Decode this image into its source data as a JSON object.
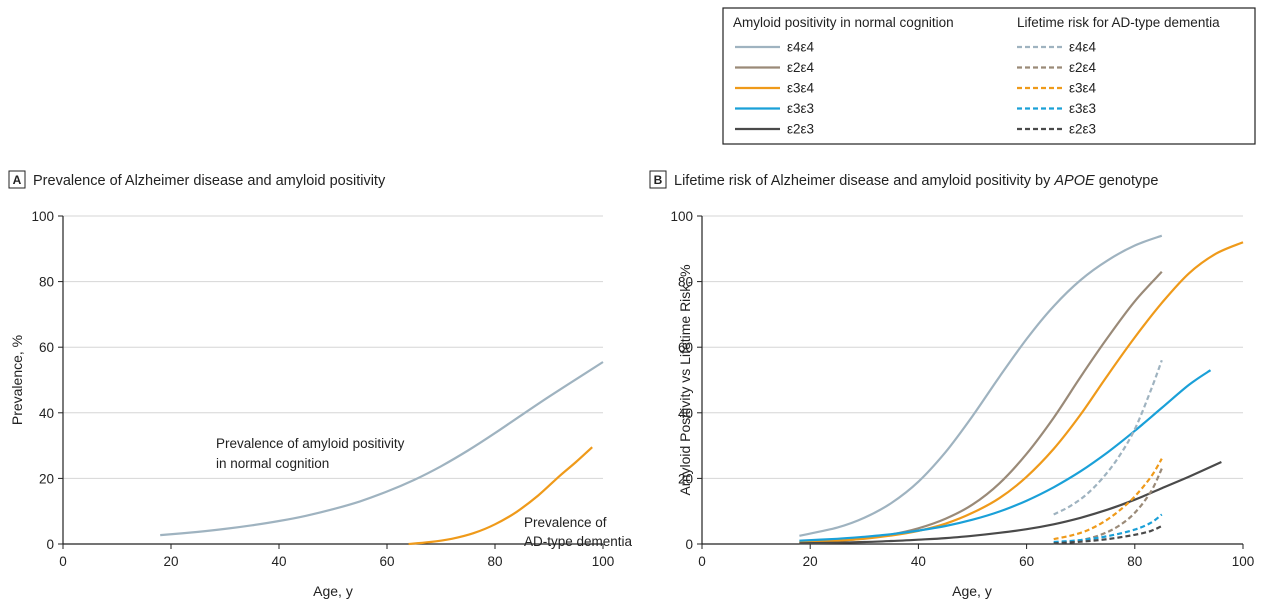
{
  "legend": {
    "solid_header": "Amyloid positivity in normal cognition",
    "dashed_header": "Lifetime risk for AD-type dementia"
  },
  "colors": {
    "e4e4": "#9fb3c0",
    "e2e4": "#9a8a78",
    "e3e4": "#ef9a1a",
    "e3e3": "#1aa0d8",
    "e2e3": "#4a4a4a",
    "axis": "#222222",
    "grid": "#d6d6d6",
    "panel_b": "#222222"
  },
  "chart_data": [
    {
      "panel_label": "A",
      "title": "Prevalence of Alzheimer disease and amyloid positivity",
      "type": "line",
      "xlabel": "Age, y",
      "ylabel": "Prevalence, %",
      "xlim": [
        0,
        100
      ],
      "ylim": [
        0,
        100
      ],
      "xticks": [
        "0",
        "20",
        "40",
        "60",
        "80",
        "100"
      ],
      "yticks": [
        "0",
        "20",
        "40",
        "60",
        "80",
        "100"
      ],
      "grid": "horizontal",
      "series": [
        {
          "color_key": "e4e4",
          "style": "solid",
          "annotation": [
            "Prevalence of amyloid positivity",
            "in normal cognition"
          ],
          "x": [
            18,
            25,
            30,
            35,
            40,
            45,
            50,
            55,
            60,
            65,
            70,
            75,
            80,
            85,
            90,
            95,
            100
          ],
          "y": [
            2.7,
            3.7,
            4.6,
            5.7,
            7.0,
            8.6,
            10.6,
            13.0,
            16.0,
            19.5,
            23.7,
            28.5,
            33.8,
            39.4,
            44.9,
            50.2,
            55.5
          ]
        },
        {
          "color_key": "e3e4",
          "style": "solid",
          "annotation": [
            "Prevalence of",
            "AD-type dementia"
          ],
          "x": [
            64,
            68,
            72,
            76,
            80,
            84,
            88,
            92,
            95,
            98
          ],
          "y": [
            0,
            0.6,
            1.6,
            3.3,
            6.0,
            9.8,
            14.8,
            20.8,
            25.0,
            29.5
          ]
        }
      ]
    },
    {
      "panel_label": "B",
      "title": "Lifetime risk of Alzheimer disease and amyloid positivity by",
      "title_italic": "APOE",
      "title_end": " genotype",
      "type": "line",
      "xlabel": "Age, y",
      "ylabel": "Amyloid Positivity vs Lifetime Risk, %",
      "xlim": [
        0,
        100
      ],
      "ylim": [
        0,
        100
      ],
      "xticks": [
        "0",
        "20",
        "40",
        "60",
        "80",
        "100"
      ],
      "yticks": [
        "0",
        "20",
        "40",
        "60",
        "80",
        "100"
      ],
      "grid": "horizontal",
      "series": [
        {
          "name": "ε4ε4",
          "color_key": "e4e4",
          "style": "solid",
          "x": [
            18,
            25,
            30,
            35,
            40,
            45,
            50,
            55,
            60,
            65,
            70,
            75,
            80,
            85
          ],
          "y": [
            2.5,
            5.0,
            8.0,
            12.5,
            19.0,
            28.0,
            39.0,
            51.0,
            62.5,
            72.5,
            80.5,
            86.5,
            91.0,
            94.0
          ]
        },
        {
          "name": "ε2ε4",
          "color_key": "e2e4",
          "style": "solid",
          "x": [
            18,
            25,
            30,
            35,
            40,
            45,
            50,
            55,
            60,
            65,
            70,
            75,
            80,
            85
          ],
          "y": [
            0.5,
            1.0,
            1.7,
            2.9,
            4.8,
            7.7,
            12.0,
            18.5,
            27.5,
            38.5,
            51.0,
            63.0,
            74.0,
            83.0
          ]
        },
        {
          "name": "ε3ε4",
          "color_key": "e3e4",
          "style": "solid",
          "x": [
            18,
            25,
            30,
            35,
            40,
            45,
            50,
            55,
            60,
            65,
            70,
            75,
            80,
            85,
            90,
            95,
            100
          ],
          "y": [
            0.5,
            1.0,
            1.6,
            2.6,
            4.0,
            6.2,
            9.5,
            14.0,
            20.5,
            29.0,
            39.5,
            51.5,
            63.0,
            73.5,
            82.5,
            88.5,
            92.0
          ]
        },
        {
          "name": "ε3ε3",
          "color_key": "e3e3",
          "style": "solid",
          "x": [
            18,
            25,
            30,
            35,
            40,
            45,
            50,
            55,
            60,
            65,
            70,
            75,
            80,
            85,
            90,
            94
          ],
          "y": [
            1.0,
            1.6,
            2.2,
            3.0,
            4.1,
            5.5,
            7.4,
            9.9,
            13.2,
            17.3,
            22.2,
            28.0,
            34.5,
            41.5,
            48.5,
            53.0
          ]
        },
        {
          "name": "ε2ε3",
          "color_key": "e2e3",
          "style": "solid",
          "x": [
            18,
            25,
            30,
            35,
            40,
            45,
            50,
            55,
            60,
            65,
            70,
            75,
            80,
            85,
            90,
            96
          ],
          "y": [
            0.2,
            0.4,
            0.6,
            0.9,
            1.3,
            1.8,
            2.5,
            3.4,
            4.5,
            6.0,
            8.0,
            10.5,
            13.5,
            17.0,
            20.5,
            25.0
          ]
        },
        {
          "name": "ε4ε4",
          "color_key": "e4e4",
          "style": "dashed",
          "x": [
            65,
            68,
            71,
            74,
            77,
            80,
            83,
            85
          ],
          "y": [
            9.0,
            11.5,
            15.0,
            20.0,
            26.5,
            35.0,
            47.0,
            56.0
          ]
        },
        {
          "name": "ε2ε4",
          "color_key": "e2e4",
          "style": "dashed",
          "x": [
            65,
            68,
            71,
            74,
            77,
            80,
            83,
            85
          ],
          "y": [
            0.3,
            0.7,
            1.5,
            3.0,
            5.5,
            9.5,
            16.0,
            23.0
          ]
        },
        {
          "name": "ε3ε4",
          "color_key": "e3e4",
          "style": "dashed",
          "x": [
            65,
            68,
            71,
            74,
            77,
            80,
            83,
            85
          ],
          "y": [
            1.5,
            2.5,
            4.0,
            6.5,
            10.0,
            14.5,
            20.5,
            26.0
          ]
        },
        {
          "name": "ε3ε3",
          "color_key": "e3e3",
          "style": "dashed",
          "x": [
            65,
            70,
            75,
            80,
            83,
            85
          ],
          "y": [
            0.6,
            1.2,
            2.4,
            4.4,
            6.5,
            9.0
          ]
        },
        {
          "name": "ε2ε3",
          "color_key": "e2e3",
          "style": "dashed",
          "x": [
            65,
            70,
            75,
            80,
            83,
            85
          ],
          "y": [
            0.2,
            0.7,
            1.5,
            2.8,
            4.0,
            5.5
          ]
        }
      ]
    }
  ]
}
